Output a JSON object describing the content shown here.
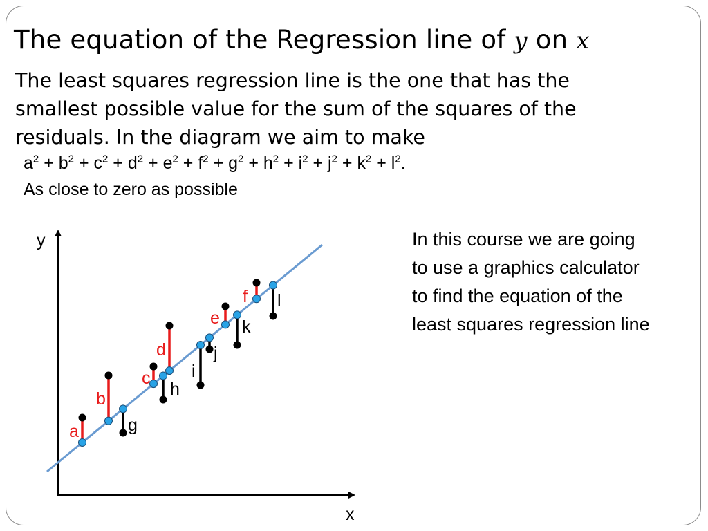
{
  "slide": {
    "title_text": "The equation of the Regression line of ",
    "title_var_y": "y",
    "title_on": " on ",
    "title_var_x": "x",
    "intro_lines": [
      "The least squares regression line is the one that has the",
      "smallest possible value for the sum of the squares of the",
      "residuals.  In the diagram we aim to make"
    ],
    "formula_terms": [
      "a",
      "b",
      "c",
      "d",
      "e",
      "f",
      "g",
      "h",
      "i",
      "j",
      "k",
      "l"
    ],
    "formula_power": "2",
    "close_text": "As close to zero as possible",
    "side_note_lines": [
      "In this course we are going",
      "to use a graphics calculator",
      "to find the equation of the",
      "least squares regression line"
    ]
  },
  "diagram": {
    "axis_x_label": "x",
    "axis_y_label": "y",
    "colors": {
      "line": "#6a9bd1",
      "on_line_point": "#29a3e6",
      "data_point": "#000000",
      "residual_red": "#e81c1c",
      "residual_black": "#000000",
      "label_red": "#e81c1c",
      "label_black": "#000000"
    },
    "residuals": [
      {
        "label": "a",
        "color": "red",
        "above": true
      },
      {
        "label": "b",
        "color": "red",
        "above": true
      },
      {
        "label": "g",
        "color": "black",
        "above": false
      },
      {
        "label": "c",
        "color": "red",
        "above": true
      },
      {
        "label": "h",
        "color": "black",
        "above": false
      },
      {
        "label": "d",
        "color": "red",
        "above": true
      },
      {
        "label": "i",
        "color": "black",
        "above": false
      },
      {
        "label": "j",
        "color": "black",
        "above": false
      },
      {
        "label": "e",
        "color": "red",
        "above": true
      },
      {
        "label": "k",
        "color": "black",
        "above": false
      },
      {
        "label": "f",
        "color": "red",
        "above": true
      },
      {
        "label": "l",
        "color": "black",
        "above": false
      }
    ]
  }
}
